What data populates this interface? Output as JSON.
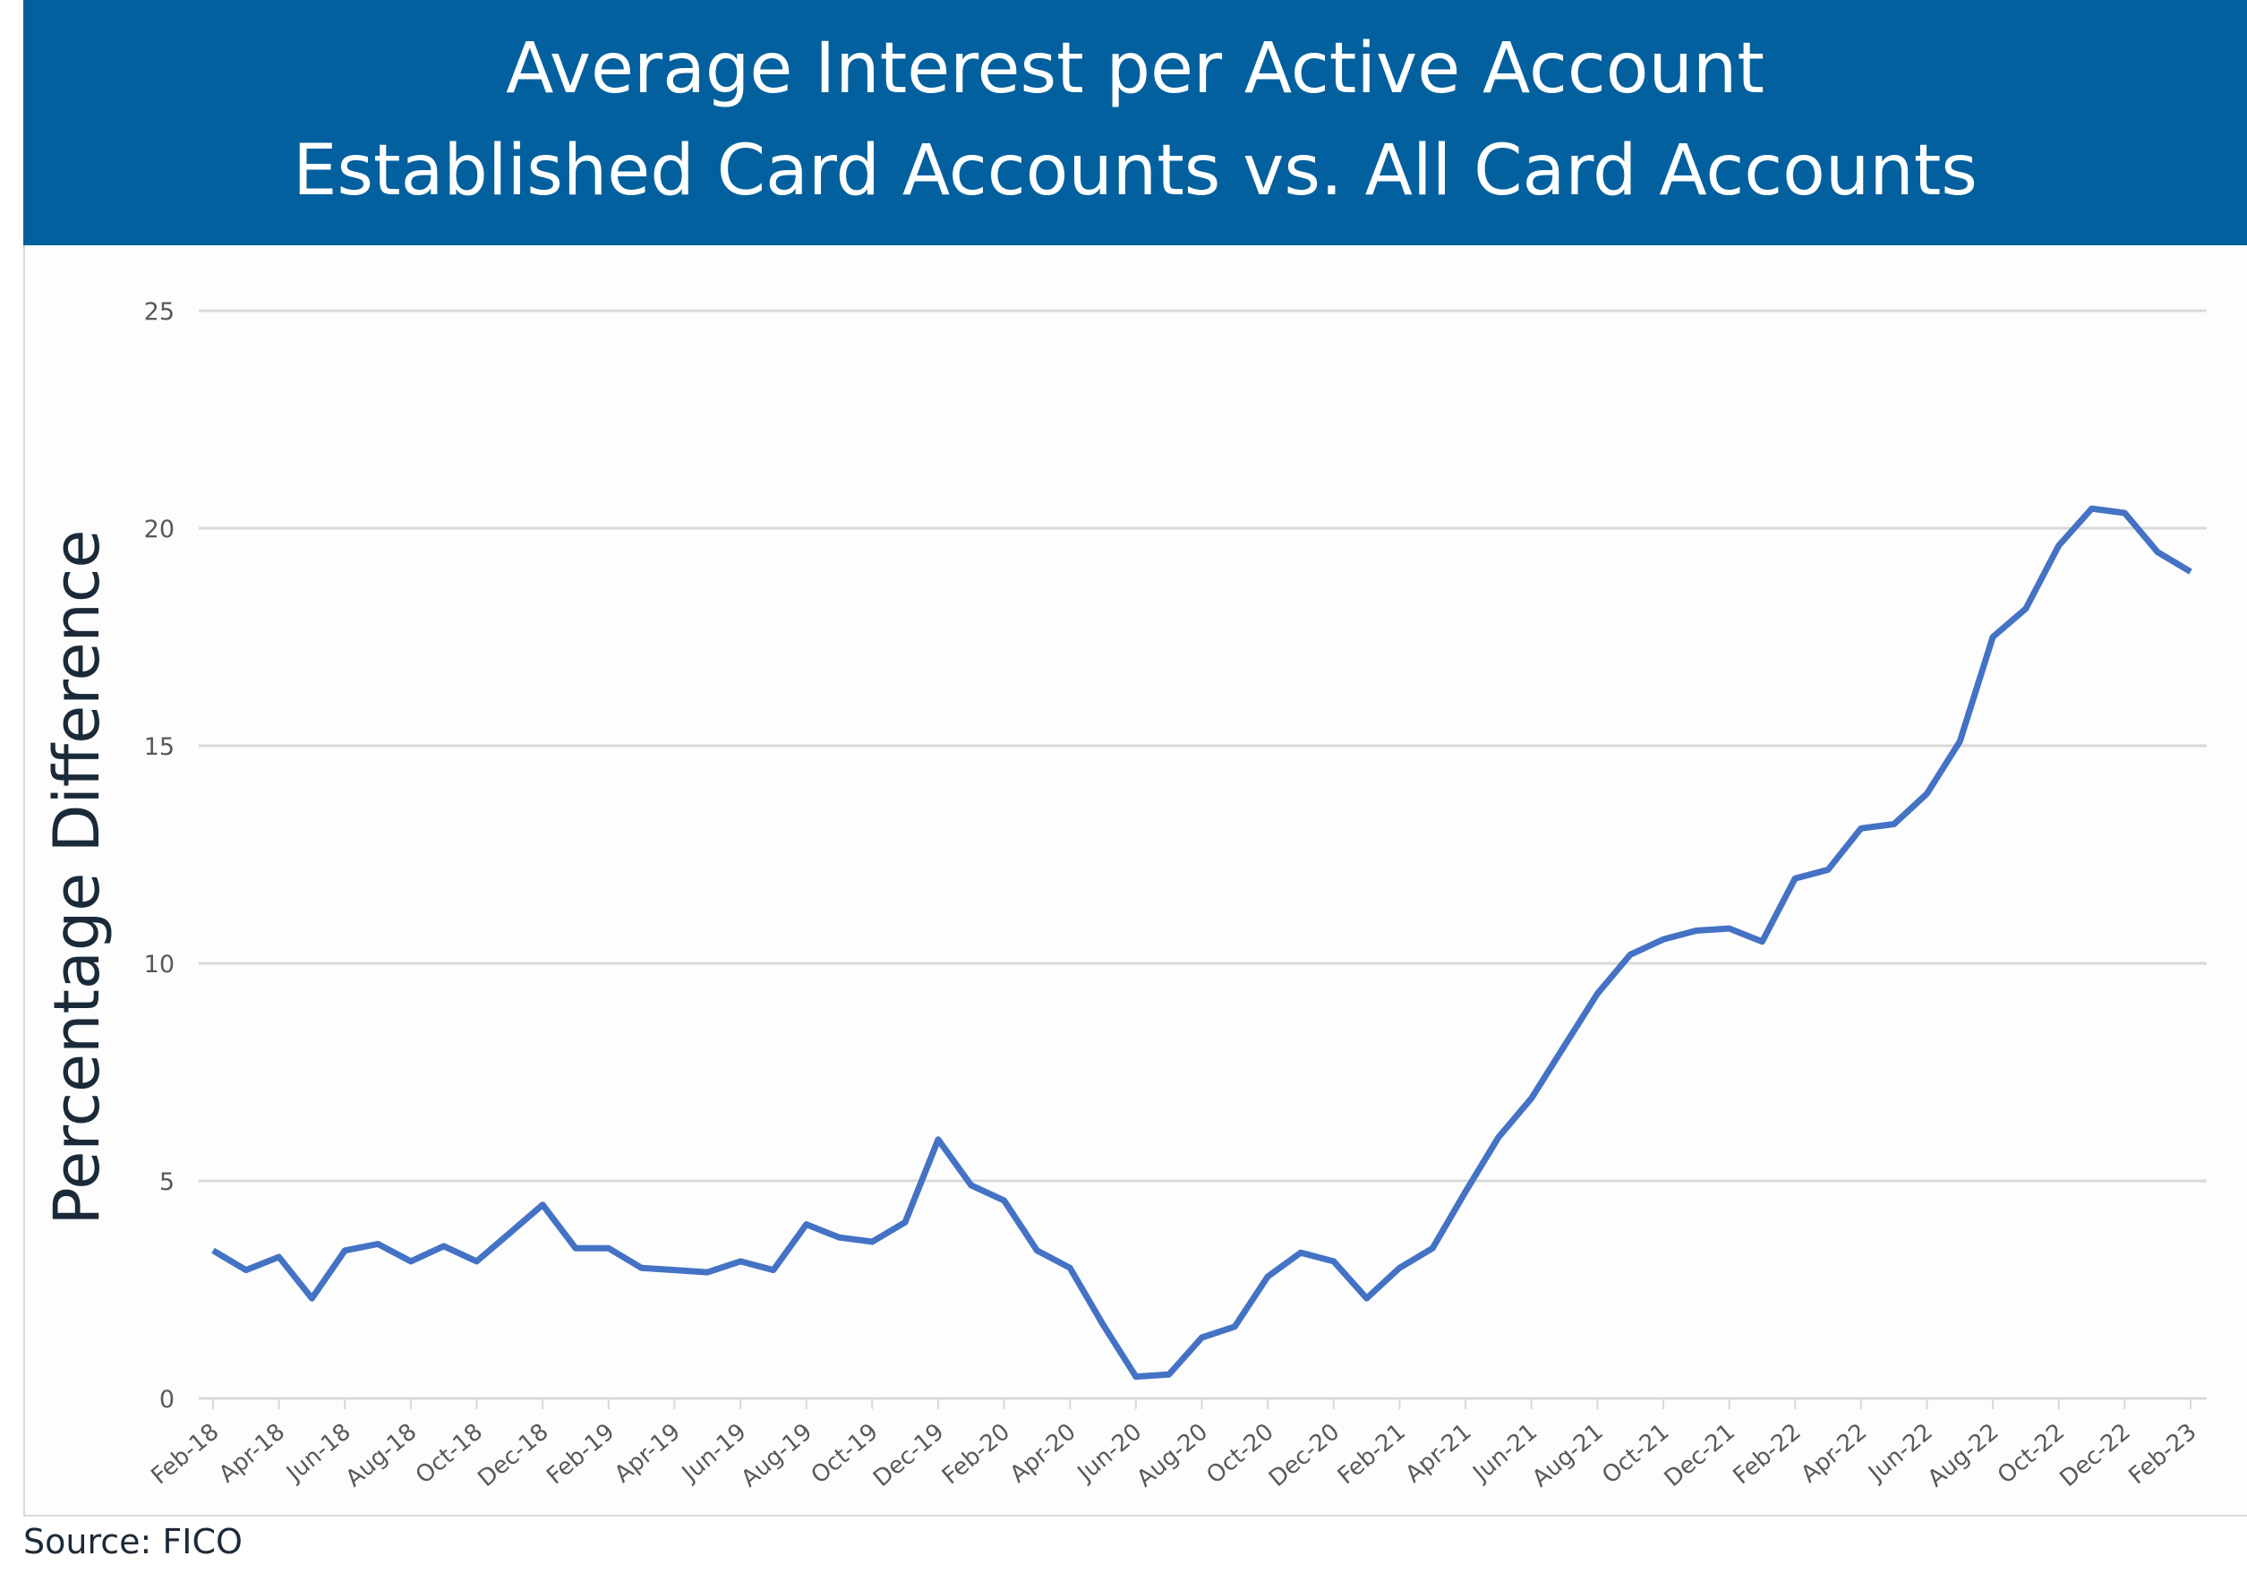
{
  "title": {
    "line1": "Average Interest per Active Account",
    "line2": "Established Card Accounts vs. All Card Accounts",
    "background_color": "#02609E"
  },
  "source": "Source: FICO",
  "chart_data": {
    "type": "line",
    "title": "Average Interest per Active Account / Established Card Accounts vs. All Card Accounts",
    "xlabel": "",
    "ylabel": "Percentage Difference",
    "ylim": [
      0,
      25
    ],
    "yticks": [
      0,
      5,
      10,
      15,
      20,
      25
    ],
    "grid": true,
    "legend": "none",
    "line_color": "#4472C4",
    "xtick_labels": [
      "Feb-18",
      "Apr-18",
      "Jun-18",
      "Aug-18",
      "Oct-18",
      "Dec-18",
      "Feb-19",
      "Apr-19",
      "Jun-19",
      "Aug-19",
      "Oct-19",
      "Dec-19",
      "Feb-20",
      "Apr-20",
      "Jun-20",
      "Aug-20",
      "Oct-20",
      "Dec-20",
      "Feb-21",
      "Apr-21",
      "Jun-21",
      "Aug-21",
      "Oct-21",
      "Dec-21",
      "Feb-22",
      "Apr-22",
      "Jun-22",
      "Aug-22",
      "Oct-22",
      "Dec-22",
      "Feb-23"
    ],
    "x": [
      "Feb-18",
      "Mar-18",
      "Apr-18",
      "May-18",
      "Jun-18",
      "Jul-18",
      "Aug-18",
      "Sep-18",
      "Oct-18",
      "Nov-18",
      "Dec-18",
      "Jan-19",
      "Feb-19",
      "Mar-19",
      "Apr-19",
      "May-19",
      "Jun-19",
      "Jul-19",
      "Aug-19",
      "Sep-19",
      "Oct-19",
      "Nov-19",
      "Dec-19",
      "Jan-20",
      "Feb-20",
      "Mar-20",
      "Apr-20",
      "May-20",
      "Jun-20",
      "Jul-20",
      "Aug-20",
      "Sep-20",
      "Oct-20",
      "Nov-20",
      "Dec-20",
      "Jan-21",
      "Feb-21",
      "Mar-21",
      "Apr-21",
      "May-21",
      "Jun-21",
      "Jul-21",
      "Aug-21",
      "Sep-21",
      "Oct-21",
      "Nov-21",
      "Dec-21",
      "Jan-22",
      "Feb-22",
      "Mar-22",
      "Apr-22",
      "May-22",
      "Jun-22",
      "Jul-22",
      "Aug-22",
      "Sep-22",
      "Oct-22",
      "Nov-22",
      "Dec-22",
      "Jan-23",
      "Feb-23"
    ],
    "series": [
      {
        "values": [
          3.4,
          2.95,
          3.25,
          2.3,
          3.4,
          3.55,
          3.15,
          3.5,
          3.15,
          3.8,
          4.45,
          3.45,
          3.45,
          3.0,
          2.95,
          2.9,
          3.15,
          2.95,
          4.0,
          3.7,
          3.6,
          4.05,
          5.95,
          4.9,
          4.55,
          3.4,
          3.0,
          1.7,
          0.5,
          0.55,
          1.4,
          1.65,
          2.8,
          3.35,
          3.15,
          2.3,
          3.0,
          3.45,
          4.75,
          6.0,
          6.9,
          8.1,
          9.3,
          10.2,
          10.55,
          10.75,
          10.8,
          10.5,
          11.95,
          12.15,
          13.1,
          13.2,
          13.9,
          15.1,
          17.5,
          18.15,
          19.6,
          20.45,
          20.35,
          19.45,
          19.0
        ]
      }
    ]
  }
}
